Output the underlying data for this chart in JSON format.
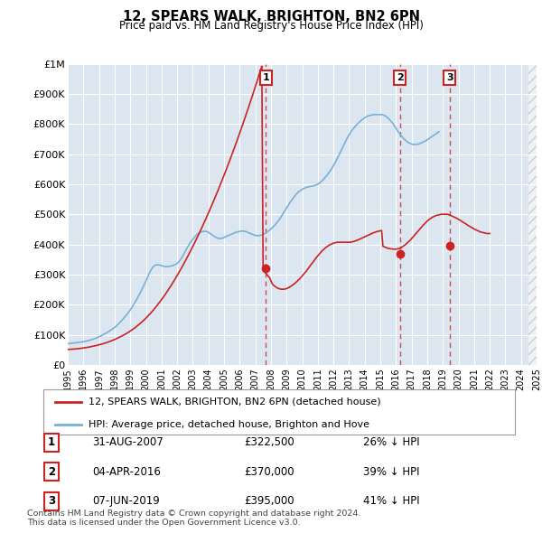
{
  "title": "12, SPEARS WALK, BRIGHTON, BN2 6PN",
  "subtitle": "Price paid vs. HM Land Registry's House Price Index (HPI)",
  "plot_bg_color": "#dce6f0",
  "legend_label_red": "12, SPEARS WALK, BRIGHTON, BN2 6PN (detached house)",
  "legend_label_blue": "HPI: Average price, detached house, Brighton and Hove",
  "footer": "Contains HM Land Registry data © Crown copyright and database right 2024.\nThis data is licensed under the Open Government Licence v3.0.",
  "sales": [
    {
      "num": 1,
      "date": "31-AUG-2007",
      "price": "£322,500",
      "pct": "26% ↓ HPI",
      "x_year": 2007.67,
      "y_val": 322500
    },
    {
      "num": 2,
      "date": "04-APR-2016",
      "price": "£370,000",
      "pct": "39% ↓ HPI",
      "x_year": 2016.25,
      "y_val": 370000
    },
    {
      "num": 3,
      "date": "07-JUN-2019",
      "price": "£395,000",
      "pct": "41% ↓ HPI",
      "x_year": 2019.44,
      "y_val": 395000
    }
  ],
  "hpi_x": [
    1995.0,
    1995.083,
    1995.167,
    1995.25,
    1995.333,
    1995.417,
    1995.5,
    1995.583,
    1995.667,
    1995.75,
    1995.833,
    1995.917,
    1996.0,
    1996.083,
    1996.167,
    1996.25,
    1996.333,
    1996.417,
    1996.5,
    1996.583,
    1996.667,
    1996.75,
    1996.833,
    1996.917,
    1997.0,
    1997.083,
    1997.167,
    1997.25,
    1997.333,
    1997.417,
    1997.5,
    1997.583,
    1997.667,
    1997.75,
    1997.833,
    1997.917,
    1998.0,
    1998.083,
    1998.167,
    1998.25,
    1998.333,
    1998.417,
    1998.5,
    1998.583,
    1998.667,
    1998.75,
    1998.833,
    1998.917,
    1999.0,
    1999.083,
    1999.167,
    1999.25,
    1999.333,
    1999.417,
    1999.5,
    1999.583,
    1999.667,
    1999.75,
    1999.833,
    1999.917,
    2000.0,
    2000.083,
    2000.167,
    2000.25,
    2000.333,
    2000.417,
    2000.5,
    2000.583,
    2000.667,
    2000.75,
    2000.833,
    2000.917,
    2001.0,
    2001.083,
    2001.167,
    2001.25,
    2001.333,
    2001.417,
    2001.5,
    2001.583,
    2001.667,
    2001.75,
    2001.833,
    2001.917,
    2002.0,
    2002.083,
    2002.167,
    2002.25,
    2002.333,
    2002.417,
    2002.5,
    2002.583,
    2002.667,
    2002.75,
    2002.833,
    2002.917,
    2003.0,
    2003.083,
    2003.167,
    2003.25,
    2003.333,
    2003.417,
    2003.5,
    2003.583,
    2003.667,
    2003.75,
    2003.833,
    2003.917,
    2004.0,
    2004.083,
    2004.167,
    2004.25,
    2004.333,
    2004.417,
    2004.5,
    2004.583,
    2004.667,
    2004.75,
    2004.833,
    2004.917,
    2005.0,
    2005.083,
    2005.167,
    2005.25,
    2005.333,
    2005.417,
    2005.5,
    2005.583,
    2005.667,
    2005.75,
    2005.833,
    2005.917,
    2006.0,
    2006.083,
    2006.167,
    2006.25,
    2006.333,
    2006.417,
    2006.5,
    2006.583,
    2006.667,
    2006.75,
    2006.833,
    2006.917,
    2007.0,
    2007.083,
    2007.167,
    2007.25,
    2007.333,
    2007.417,
    2007.5,
    2007.583,
    2007.667,
    2007.75,
    2007.833,
    2007.917,
    2008.0,
    2008.083,
    2008.167,
    2008.25,
    2008.333,
    2008.417,
    2008.5,
    2008.583,
    2008.667,
    2008.75,
    2008.833,
    2008.917,
    2009.0,
    2009.083,
    2009.167,
    2009.25,
    2009.333,
    2009.417,
    2009.5,
    2009.583,
    2009.667,
    2009.75,
    2009.833,
    2009.917,
    2010.0,
    2010.083,
    2010.167,
    2010.25,
    2010.333,
    2010.417,
    2010.5,
    2010.583,
    2010.667,
    2010.75,
    2010.833,
    2010.917,
    2011.0,
    2011.083,
    2011.167,
    2011.25,
    2011.333,
    2011.417,
    2011.5,
    2011.583,
    2011.667,
    2011.75,
    2011.833,
    2011.917,
    2012.0,
    2012.083,
    2012.167,
    2012.25,
    2012.333,
    2012.417,
    2012.5,
    2012.583,
    2012.667,
    2012.75,
    2012.833,
    2012.917,
    2013.0,
    2013.083,
    2013.167,
    2013.25,
    2013.333,
    2013.417,
    2013.5,
    2013.583,
    2013.667,
    2013.75,
    2013.833,
    2013.917,
    2014.0,
    2014.083,
    2014.167,
    2014.25,
    2014.333,
    2014.417,
    2014.5,
    2014.583,
    2014.667,
    2014.75,
    2014.833,
    2014.917,
    2015.0,
    2015.083,
    2015.167,
    2015.25,
    2015.333,
    2015.417,
    2015.5,
    2015.583,
    2015.667,
    2015.75,
    2015.833,
    2015.917,
    2016.0,
    2016.083,
    2016.167,
    2016.25,
    2016.333,
    2016.417,
    2016.5,
    2016.583,
    2016.667,
    2016.75,
    2016.833,
    2016.917,
    2017.0,
    2017.083,
    2017.167,
    2017.25,
    2017.333,
    2017.417,
    2017.5,
    2017.583,
    2017.667,
    2017.75,
    2017.833,
    2017.917,
    2018.0,
    2018.083,
    2018.167,
    2018.25,
    2018.333,
    2018.417,
    2018.5,
    2018.583,
    2018.667,
    2018.75,
    2018.833,
    2018.917,
    2019.0,
    2019.083,
    2019.167,
    2019.25,
    2019.333,
    2019.417,
    2019.5,
    2019.583,
    2019.667,
    2019.75,
    2019.833,
    2019.917,
    2020.0,
    2020.083,
    2020.167,
    2020.25,
    2020.333,
    2020.417,
    2020.5,
    2020.583,
    2020.667,
    2020.75,
    2020.833,
    2020.917,
    2021.0,
    2021.083,
    2021.167,
    2021.25,
    2021.333,
    2021.417,
    2021.5,
    2021.583,
    2021.667,
    2021.75,
    2021.833,
    2021.917,
    2022.0,
    2022.083,
    2022.167,
    2022.25,
    2022.333,
    2022.417,
    2022.5,
    2022.583,
    2022.667,
    2022.75,
    2022.833,
    2022.917,
    2023.0,
    2023.083,
    2023.167,
    2023.25,
    2023.333,
    2023.417,
    2023.5,
    2023.583,
    2023.667,
    2023.75,
    2023.833,
    2023.917,
    2024.0,
    2024.083,
    2024.167,
    2024.25,
    2024.333,
    2024.417,
    2024.5
  ],
  "hpi_y": [
    71000,
    71500,
    72000,
    72500,
    73000,
    73500,
    74000,
    74500,
    75000,
    75500,
    76000,
    76800,
    77600,
    78500,
    79500,
    80500,
    81500,
    82800,
    84000,
    85500,
    87000,
    88500,
    90000,
    92000,
    94000,
    96000,
    98000,
    100500,
    103000,
    105500,
    108000,
    110500,
    113000,
    116000,
    119000,
    122000,
    125000,
    129000,
    133000,
    137000,
    141000,
    146000,
    151000,
    156000,
    161000,
    166000,
    171000,
    177000,
    183000,
    190000,
    197000,
    204000,
    211000,
    219000,
    227000,
    235000,
    243000,
    252000,
    261000,
    270000,
    279000,
    289000,
    299000,
    308000,
    316000,
    323000,
    328000,
    331000,
    333000,
    333000,
    333000,
    332000,
    330000,
    329000,
    328000,
    327000,
    327000,
    327000,
    328000,
    329000,
    330000,
    331000,
    333000,
    335000,
    338000,
    342000,
    347000,
    353000,
    360000,
    368000,
    376000,
    384000,
    392000,
    399000,
    406000,
    412000,
    418000,
    423000,
    428000,
    432000,
    436000,
    439000,
    441000,
    443000,
    444000,
    444000,
    444000,
    443000,
    441000,
    438000,
    435000,
    432000,
    429000,
    426000,
    424000,
    422000,
    421000,
    420000,
    421000,
    422000,
    424000,
    426000,
    428000,
    430000,
    432000,
    433000,
    435000,
    437000,
    439000,
    441000,
    442000,
    443000,
    444000,
    445000,
    445000,
    445000,
    444000,
    443000,
    441000,
    439000,
    437000,
    436000,
    434000,
    432000,
    431000,
    430000,
    430000,
    430000,
    431000,
    432000,
    434000,
    436000,
    439000,
    442000,
    445000,
    448000,
    452000,
    456000,
    460000,
    465000,
    470000,
    475000,
    481000,
    487000,
    494000,
    501000,
    508000,
    515000,
    522000,
    529000,
    536000,
    542000,
    548000,
    554000,
    560000,
    565000,
    570000,
    574000,
    578000,
    581000,
    584000,
    586000,
    588000,
    590000,
    591000,
    592000,
    593000,
    594000,
    595000,
    596000,
    597000,
    599000,
    601000,
    604000,
    607000,
    611000,
    615000,
    620000,
    625000,
    630000,
    636000,
    642000,
    648000,
    655000,
    662000,
    670000,
    678000,
    686000,
    695000,
    704000,
    713000,
    722000,
    731000,
    740000,
    749000,
    757000,
    764000,
    771000,
    778000,
    784000,
    789000,
    794000,
    799000,
    803000,
    807000,
    811000,
    815000,
    818000,
    821000,
    824000,
    826000,
    828000,
    829000,
    830000,
    831000,
    832000,
    832000,
    832000,
    832000,
    832000,
    832000,
    832000,
    831000,
    829000,
    827000,
    824000,
    820000,
    816000,
    811000,
    806000,
    800000,
    794000,
    787000,
    780000,
    774000,
    768000,
    762000,
    757000,
    752000,
    748000,
    744000,
    740000,
    738000,
    736000,
    734000,
    733000,
    733000,
    733000,
    733000,
    734000,
    735000,
    737000,
    739000,
    741000,
    743000,
    745000,
    748000,
    751000,
    754000,
    757000,
    760000,
    763000,
    766000,
    769000,
    772000,
    775000
  ],
  "red_x": [
    1995.0,
    1995.083,
    1995.167,
    1995.25,
    1995.333,
    1995.417,
    1995.5,
    1995.583,
    1995.667,
    1995.75,
    1995.833,
    1995.917,
    1996.0,
    1996.083,
    1996.167,
    1996.25,
    1996.333,
    1996.417,
    1996.5,
    1996.583,
    1996.667,
    1996.75,
    1996.833,
    1996.917,
    1997.0,
    1997.083,
    1997.167,
    1997.25,
    1997.333,
    1997.417,
    1997.5,
    1997.583,
    1997.667,
    1997.75,
    1997.833,
    1997.917,
    1998.0,
    1998.083,
    1998.167,
    1998.25,
    1998.333,
    1998.417,
    1998.5,
    1998.583,
    1998.667,
    1998.75,
    1998.833,
    1998.917,
    1999.0,
    1999.083,
    1999.167,
    1999.25,
    1999.333,
    1999.417,
    1999.5,
    1999.583,
    1999.667,
    1999.75,
    1999.833,
    1999.917,
    2000.0,
    2000.083,
    2000.167,
    2000.25,
    2000.333,
    2000.417,
    2000.5,
    2000.583,
    2000.667,
    2000.75,
    2000.833,
    2000.917,
    2001.0,
    2001.083,
    2001.167,
    2001.25,
    2001.333,
    2001.417,
    2001.5,
    2001.583,
    2001.667,
    2001.75,
    2001.833,
    2001.917,
    2002.0,
    2002.083,
    2002.167,
    2002.25,
    2002.333,
    2002.417,
    2002.5,
    2002.583,
    2002.667,
    2002.75,
    2002.833,
    2002.917,
    2003.0,
    2003.083,
    2003.167,
    2003.25,
    2003.333,
    2003.417,
    2003.5,
    2003.583,
    2003.667,
    2003.75,
    2003.833,
    2003.917,
    2004.0,
    2004.083,
    2004.167,
    2004.25,
    2004.333,
    2004.417,
    2004.5,
    2004.583,
    2004.667,
    2004.75,
    2004.833,
    2004.917,
    2005.0,
    2005.083,
    2005.167,
    2005.25,
    2005.333,
    2005.417,
    2005.5,
    2005.583,
    2005.667,
    2005.75,
    2005.833,
    2005.917,
    2006.0,
    2006.083,
    2006.167,
    2006.25,
    2006.333,
    2006.417,
    2006.5,
    2006.583,
    2006.667,
    2006.75,
    2006.833,
    2006.917,
    2007.0,
    2007.083,
    2007.167,
    2007.25,
    2007.333,
    2007.417,
    2007.5,
    2007.583,
    2007.67,
    2007.75,
    2007.833,
    2007.917,
    2008.0,
    2008.083,
    2008.167,
    2008.25,
    2008.333,
    2008.417,
    2008.5,
    2008.583,
    2008.667,
    2008.75,
    2008.833,
    2008.917,
    2009.0,
    2009.083,
    2009.167,
    2009.25,
    2009.333,
    2009.417,
    2009.5,
    2009.583,
    2009.667,
    2009.75,
    2009.833,
    2009.917,
    2010.0,
    2010.083,
    2010.167,
    2010.25,
    2010.333,
    2010.417,
    2010.5,
    2010.583,
    2010.667,
    2010.75,
    2010.833,
    2010.917,
    2011.0,
    2011.083,
    2011.167,
    2011.25,
    2011.333,
    2011.417,
    2011.5,
    2011.583,
    2011.667,
    2011.75,
    2011.833,
    2011.917,
    2012.0,
    2012.083,
    2012.167,
    2012.25,
    2012.333,
    2012.417,
    2012.5,
    2012.583,
    2012.667,
    2012.75,
    2012.833,
    2012.917,
    2013.0,
    2013.083,
    2013.167,
    2013.25,
    2013.333,
    2013.417,
    2013.5,
    2013.583,
    2013.667,
    2013.75,
    2013.833,
    2013.917,
    2014.0,
    2014.083,
    2014.167,
    2014.25,
    2014.333,
    2014.417,
    2014.5,
    2014.583,
    2014.667,
    2014.75,
    2014.833,
    2014.917,
    2015.0,
    2015.083,
    2015.167,
    2015.25,
    2015.333,
    2015.417,
    2015.5,
    2015.583,
    2015.667,
    2015.75,
    2015.833,
    2015.917,
    2016.0,
    2016.083,
    2016.167,
    2016.25,
    2016.333,
    2016.417,
    2016.5,
    2016.583,
    2016.667,
    2016.75,
    2016.833,
    2016.917,
    2017.0,
    2017.083,
    2017.167,
    2017.25,
    2017.333,
    2017.417,
    2017.5,
    2017.583,
    2017.667,
    2017.75,
    2017.833,
    2017.917,
    2018.0,
    2018.083,
    2018.167,
    2018.25,
    2018.333,
    2018.417,
    2018.5,
    2018.583,
    2018.667,
    2018.75,
    2018.833,
    2018.917,
    2019.0,
    2019.083,
    2019.167,
    2019.25,
    2019.333,
    2019.417,
    2019.44,
    2019.5,
    2019.583,
    2019.667,
    2019.75,
    2019.833,
    2019.917,
    2020.0,
    2020.083,
    2020.167,
    2020.25,
    2020.333,
    2020.417,
    2020.5,
    2020.583,
    2020.667,
    2020.75,
    2020.833,
    2020.917,
    2021.0,
    2021.083,
    2021.167,
    2021.25,
    2021.333,
    2021.417,
    2021.5,
    2021.583,
    2021.667,
    2021.75,
    2021.833,
    2021.917,
    2022.0,
    2022.083,
    2022.167,
    2022.25,
    2022.333,
    2022.417,
    2022.5,
    2022.583,
    2022.667,
    2022.75,
    2022.833,
    2022.917,
    2023.0,
    2023.083,
    2023.167,
    2023.25,
    2023.333,
    2023.417,
    2023.5,
    2023.583,
    2023.667,
    2023.75,
    2023.833,
    2023.917,
    2024.0,
    2024.083,
    2024.167,
    2024.25,
    2024.333,
    2024.417,
    2024.5
  ],
  "red_y": [
    52000,
    52200,
    52500,
    52800,
    53100,
    53400,
    53800,
    54200,
    54600,
    55100,
    55600,
    56200,
    56800,
    57400,
    58100,
    58800,
    59600,
    60400,
    61300,
    62200,
    63100,
    64100,
    65100,
    66200,
    67300,
    68400,
    69600,
    70900,
    72200,
    73600,
    75000,
    76500,
    78100,
    79700,
    81400,
    83200,
    85000,
    87000,
    89000,
    91100,
    93200,
    95400,
    97600,
    100000,
    102400,
    104900,
    107500,
    110200,
    113000,
    116000,
    119000,
    122200,
    125500,
    128900,
    132400,
    136000,
    139700,
    143500,
    147500,
    151600,
    155800,
    160200,
    164700,
    169400,
    174200,
    179100,
    184200,
    189400,
    194700,
    200200,
    205800,
    211500,
    217400,
    223400,
    229500,
    235700,
    242100,
    248600,
    255200,
    261900,
    268700,
    275700,
    282800,
    290000,
    297300,
    304700,
    312300,
    320000,
    327800,
    335700,
    343700,
    351800,
    360000,
    368300,
    376700,
    385200,
    393800,
    402500,
    411300,
    420200,
    429200,
    438300,
    447500,
    456800,
    466200,
    475700,
    485300,
    495000,
    504800,
    514700,
    524700,
    534800,
    545000,
    555300,
    565700,
    576200,
    586800,
    597500,
    608300,
    619200,
    630200,
    641300,
    652500,
    663800,
    675200,
    686700,
    698300,
    710000,
    721800,
    733700,
    745700,
    757800,
    770000,
    782300,
    794700,
    807200,
    819800,
    832500,
    845300,
    858200,
    871200,
    884300,
    897500,
    910800,
    924200,
    937700,
    951300,
    965000,
    978800,
    992700,
    322500,
    310000,
    305000,
    300000,
    295000,
    290000,
    280000,
    270000,
    265000,
    262000,
    259000,
    256000,
    254000,
    253000,
    252000,
    252000,
    252000,
    253000,
    254000,
    256000,
    258000,
    261000,
    264000,
    267000,
    270000,
    274000,
    278000,
    282000,
    286000,
    291000,
    296000,
    301000,
    306000,
    311000,
    317000,
    323000,
    329000,
    335000,
    340000,
    346000,
    352000,
    358000,
    363000,
    368000,
    373000,
    378000,
    382000,
    386000,
    390000,
    393000,
    396000,
    399000,
    401000,
    403000,
    405000,
    406000,
    407000,
    408000,
    408000,
    408000,
    408000,
    408000,
    408000,
    408000,
    408000,
    408000,
    408000,
    408000,
    409000,
    410000,
    411000,
    413000,
    414000,
    416000,
    418000,
    420000,
    422000,
    424000,
    426000,
    428000,
    430000,
    432000,
    434000,
    436000,
    438000,
    440000,
    441000,
    443000,
    444000,
    445000,
    446000,
    447000,
    395000,
    393000,
    391000,
    389000,
    388000,
    387000,
    386000,
    386000,
    385000,
    385000,
    385000,
    386000,
    387000,
    388000,
    390000,
    393000,
    396000,
    399000,
    403000,
    407000,
    411000,
    415000,
    420000,
    425000,
    430000,
    435000,
    440000,
    445000,
    450000,
    455000,
    460000,
    465000,
    469000,
    474000,
    478000,
    482000,
    485000,
    488000,
    491000,
    493000,
    495000,
    497000,
    498000,
    499000,
    500000,
    501000,
    501000,
    501000,
    501000,
    501000,
    500000,
    499000,
    498000,
    497000,
    495000,
    493000,
    491000,
    489000,
    487000,
    484000,
    482000,
    479000,
    476000,
    473000,
    471000,
    468000,
    465000,
    462000,
    460000,
    457000,
    455000,
    452000,
    450000,
    448000,
    446000,
    444000,
    442000,
    441000,
    440000,
    439000,
    438000,
    437000,
    437000,
    437000
  ],
  "ylim": [
    0,
    1000000
  ],
  "xlim": [
    1995,
    2025
  ],
  "yticks": [
    0,
    100000,
    200000,
    300000,
    400000,
    500000,
    600000,
    700000,
    800000,
    900000,
    1000000
  ],
  "ytick_labels": [
    "£0",
    "£100K",
    "£200K",
    "£300K",
    "£400K",
    "£500K",
    "£600K",
    "£700K",
    "£800K",
    "£900K",
    "£1M"
  ]
}
